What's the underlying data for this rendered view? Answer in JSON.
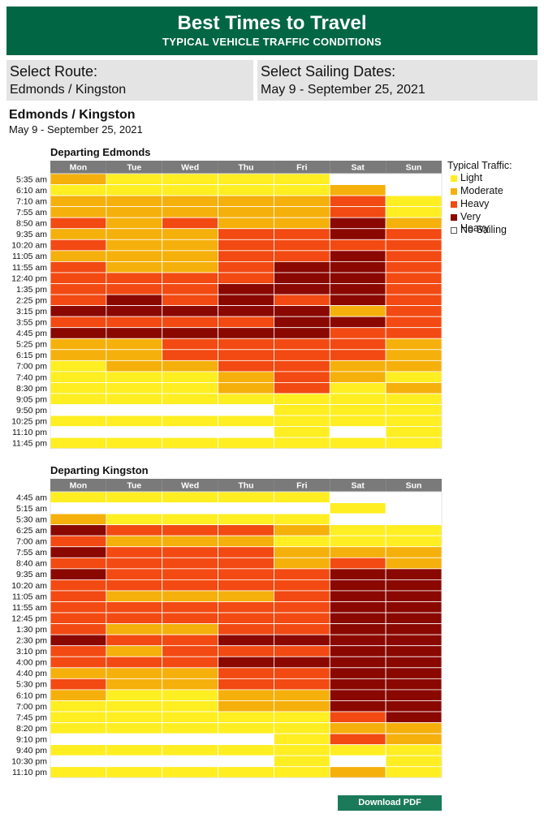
{
  "header": {
    "title": "Best Times to Travel",
    "subtitle": "TYPICAL VEHICLE TRAFFIC CONDITIONS"
  },
  "selectors": {
    "route": {
      "label": "Select Route:",
      "value": "Edmonds / Kingston"
    },
    "dates": {
      "label": "Select Sailing Dates:",
      "value": "May 9 - September 25, 2021"
    }
  },
  "route_title": "Edmonds / Kingston",
  "date_range": "May 9 - September 25, 2021",
  "colors": {
    "L": "#ffee22",
    "M": "#f5b00b",
    "H": "#f24a12",
    "V": "#8a0800",
    "N": "#ffffff",
    "header": "#7a7a7a",
    "brand": "#006644"
  },
  "legend": {
    "title": "Typical Traffic:",
    "items": [
      {
        "key": "L",
        "label": "Light"
      },
      {
        "key": "M",
        "label": "Moderate"
      },
      {
        "key": "H",
        "label": "Heavy"
      },
      {
        "key": "V",
        "label": "Very Heavy"
      },
      {
        "key": "N",
        "label": "No Sailing"
      }
    ]
  },
  "download_label": "Download PDF",
  "chart_data": [
    {
      "type": "heatmap",
      "title": "Departing Edmonds",
      "columns": [
        "Mon",
        "Tue",
        "Wed",
        "Thu",
        "Fri",
        "Sat",
        "Sun"
      ],
      "rows": [
        "5:35 am",
        "6:10 am",
        "7:10 am",
        "7:55 am",
        "8:50 am",
        "9:35 am",
        "10:20 am",
        "11:05 am",
        "11:55 am",
        "12:40 pm",
        "1:35 pm",
        "2:25 pm",
        "3:15 pm",
        "3:55 pm",
        "4:45 pm",
        "5:25 pm",
        "6:15 pm",
        "7:00 pm",
        "7:40 pm",
        "8:30 pm",
        "9:05 pm",
        "9:50 pm",
        "10:25 pm",
        "11:10 pm",
        "11:45 pm"
      ],
      "values": [
        [
          "M",
          "L",
          "L",
          "L",
          "L",
          "N",
          "N"
        ],
        [
          "L",
          "L",
          "L",
          "L",
          "L",
          "M",
          "N"
        ],
        [
          "M",
          "M",
          "M",
          "M",
          "M",
          "H",
          "L"
        ],
        [
          "M",
          "M",
          "M",
          "M",
          "M",
          "H",
          "L"
        ],
        [
          "H",
          "M",
          "H",
          "M",
          "M",
          "V",
          "M"
        ],
        [
          "M",
          "M",
          "M",
          "H",
          "H",
          "V",
          "H"
        ],
        [
          "H",
          "M",
          "M",
          "H",
          "H",
          "H",
          "H"
        ],
        [
          "M",
          "M",
          "M",
          "H",
          "H",
          "V",
          "H"
        ],
        [
          "H",
          "M",
          "M",
          "H",
          "V",
          "V",
          "H"
        ],
        [
          "H",
          "H",
          "H",
          "H",
          "V",
          "V",
          "H"
        ],
        [
          "H",
          "H",
          "H",
          "V",
          "V",
          "V",
          "H"
        ],
        [
          "H",
          "V",
          "H",
          "V",
          "H",
          "V",
          "H"
        ],
        [
          "V",
          "V",
          "V",
          "V",
          "V",
          "M",
          "H"
        ],
        [
          "H",
          "H",
          "H",
          "H",
          "V",
          "V",
          "H"
        ],
        [
          "V",
          "V",
          "V",
          "V",
          "V",
          "H",
          "H"
        ],
        [
          "M",
          "M",
          "H",
          "H",
          "H",
          "H",
          "M"
        ],
        [
          "M",
          "M",
          "H",
          "H",
          "H",
          "H",
          "M"
        ],
        [
          "L",
          "M",
          "M",
          "H",
          "H",
          "M",
          "M"
        ],
        [
          "L",
          "L",
          "L",
          "M",
          "H",
          "M",
          "L"
        ],
        [
          "L",
          "L",
          "L",
          "M",
          "H",
          "L",
          "M"
        ],
        [
          "L",
          "L",
          "L",
          "L",
          "L",
          "L",
          "L"
        ],
        [
          "N",
          "N",
          "N",
          "N",
          "L",
          "L",
          "L"
        ],
        [
          "L",
          "L",
          "L",
          "L",
          "L",
          "L",
          "L"
        ],
        [
          "N",
          "N",
          "N",
          "N",
          "L",
          "N",
          "L"
        ],
        [
          "L",
          "L",
          "L",
          "L",
          "L",
          "L",
          "L"
        ]
      ]
    },
    {
      "type": "heatmap",
      "title": "Departing Kingston",
      "columns": [
        "Mon",
        "Tue",
        "Wed",
        "Thu",
        "Fri",
        "Sat",
        "Sun"
      ],
      "rows": [
        "4:45 am",
        "5:15 am",
        "5:30 am",
        "6:25 am",
        "7:00 am",
        "7:55 am",
        "8:40 am",
        "9:35 am",
        "10:20 am",
        "11:05 am",
        "11:55 am",
        "12:45 pm",
        "1:30 pm",
        "2:30 pm",
        "3:10 pm",
        "4:00 pm",
        "4:40 pm",
        "5:30 pm",
        "6:10 pm",
        "7:00 pm",
        "7:45 pm",
        "8:20 pm",
        "9:10 pm",
        "9:40 pm",
        "10:30 pm",
        "11:10 pm"
      ],
      "values": [
        [
          "L",
          "L",
          "L",
          "L",
          "L",
          "N",
          "N"
        ],
        [
          "N",
          "N",
          "N",
          "N",
          "N",
          "L",
          "N"
        ],
        [
          "M",
          "L",
          "L",
          "L",
          "L",
          "N",
          "N"
        ],
        [
          "V",
          "H",
          "H",
          "H",
          "M",
          "L",
          "L"
        ],
        [
          "H",
          "M",
          "M",
          "M",
          "L",
          "L",
          "L"
        ],
        [
          "V",
          "H",
          "H",
          "H",
          "M",
          "M",
          "M"
        ],
        [
          "H",
          "H",
          "H",
          "H",
          "M",
          "H",
          "M"
        ],
        [
          "V",
          "H",
          "H",
          "H",
          "H",
          "V",
          "V"
        ],
        [
          "H",
          "H",
          "H",
          "H",
          "H",
          "V",
          "V"
        ],
        [
          "H",
          "M",
          "M",
          "M",
          "H",
          "V",
          "V"
        ],
        [
          "H",
          "H",
          "H",
          "H",
          "H",
          "V",
          "V"
        ],
        [
          "H",
          "H",
          "H",
          "H",
          "H",
          "V",
          "V"
        ],
        [
          "H",
          "M",
          "M",
          "H",
          "H",
          "V",
          "V"
        ],
        [
          "V",
          "H",
          "H",
          "V",
          "V",
          "V",
          "V"
        ],
        [
          "H",
          "M",
          "H",
          "H",
          "H",
          "V",
          "V"
        ],
        [
          "H",
          "H",
          "H",
          "V",
          "V",
          "V",
          "V"
        ],
        [
          "M",
          "M",
          "M",
          "H",
          "H",
          "V",
          "V"
        ],
        [
          "H",
          "M",
          "M",
          "H",
          "H",
          "V",
          "V"
        ],
        [
          "M",
          "L",
          "L",
          "M",
          "M",
          "V",
          "V"
        ],
        [
          "L",
          "L",
          "L",
          "M",
          "M",
          "V",
          "V"
        ],
        [
          "L",
          "L",
          "L",
          "L",
          "L",
          "H",
          "V"
        ],
        [
          "L",
          "L",
          "L",
          "L",
          "L",
          "M",
          "M"
        ],
        [
          "N",
          "N",
          "N",
          "N",
          "L",
          "H",
          "M"
        ],
        [
          "L",
          "L",
          "L",
          "L",
          "L",
          "L",
          "L"
        ],
        [
          "N",
          "N",
          "N",
          "N",
          "L",
          "N",
          "L"
        ],
        [
          "L",
          "L",
          "L",
          "L",
          "L",
          "M",
          "L"
        ]
      ]
    }
  ]
}
